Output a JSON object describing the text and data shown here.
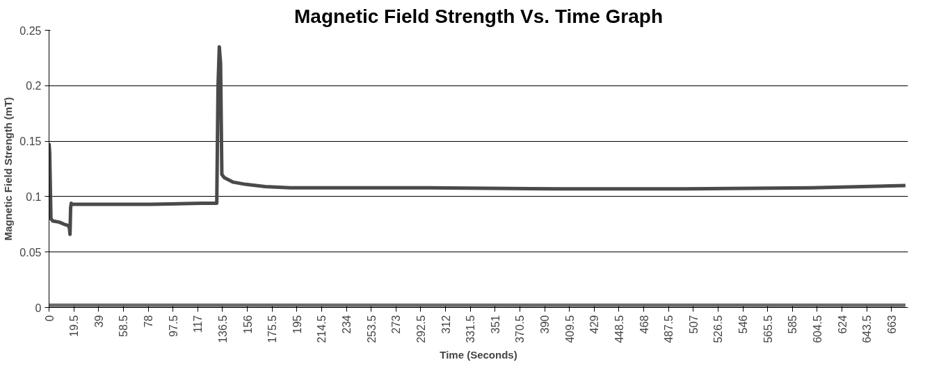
{
  "chart_data": {
    "type": "line",
    "title": "Magnetic Field Strength Vs. Time Graph",
    "xlabel": "Time (Seconds)",
    "ylabel": "Magnetic Field Strength (mT)",
    "xlim": [
      0,
      676
    ],
    "ylim": [
      0,
      0.25
    ],
    "xticks": [
      0,
      19.5,
      39,
      58.5,
      78,
      97.5,
      117,
      136.5,
      156,
      175.5,
      195,
      214.5,
      234,
      253.5,
      273,
      292.5,
      312,
      331.5,
      351,
      370.5,
      390,
      409.5,
      429,
      448.5,
      468,
      487.5,
      507,
      526.5,
      546,
      565.5,
      585,
      604.5,
      624,
      643.5,
      663
    ],
    "yticks": [
      0,
      0.05,
      0.1,
      0.15,
      0.2,
      0.25
    ],
    "grid": "y",
    "marker": "none",
    "line_style": "solid",
    "series": [
      {
        "color": "#4a4a4a",
        "x": [
          0,
          0.5,
          1.5,
          3,
          8,
          12,
          15,
          16,
          16.5,
          17,
          17.5,
          18,
          40,
          80,
          120,
          132,
          133,
          134,
          135,
          136,
          138,
          145,
          155,
          170,
          190,
          230,
          300,
          400,
          500,
          600,
          674
        ],
        "values": [
          0.148,
          0.14,
          0.08,
          0.078,
          0.077,
          0.075,
          0.074,
          0.072,
          0.066,
          0.09,
          0.094,
          0.093,
          0.093,
          0.093,
          0.094,
          0.094,
          0.2,
          0.235,
          0.22,
          0.12,
          0.117,
          0.113,
          0.111,
          0.109,
          0.108,
          0.108,
          0.108,
          0.107,
          0.107,
          0.108,
          0.11
        ]
      },
      {
        "color": "#6a6a6a",
        "x": [
          0,
          674
        ],
        "values": [
          0.002,
          0.002
        ]
      }
    ]
  }
}
